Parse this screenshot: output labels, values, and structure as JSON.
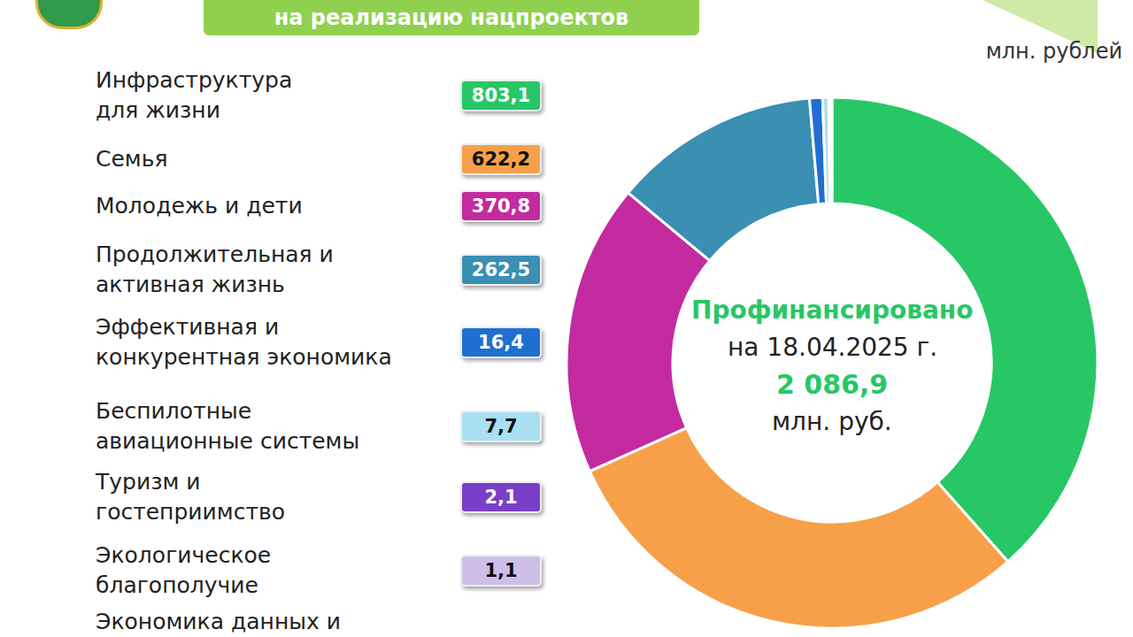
{
  "chart_data": {
    "type": "donut",
    "title": "на реализацию нацпроектов",
    "subtitle": "млн. рублей",
    "categories": [
      "Инфраструктура\nдля жизни",
      "Семья",
      "Молодежь и дети",
      "Продолжительная и\nактивная жизнь",
      "Эффективная и\nконкурентная экономика",
      "Беспилотные\nавиационные системы",
      "Туризм и\nгостеприимство",
      "Экологическое\nблагополучие",
      "Экономика данных и"
    ],
    "values": [
      803.1,
      622.2,
      370.8,
      262.5,
      16.4,
      7.7,
      2.1,
      1.1,
      1.0
    ],
    "value_labels": [
      "803,1",
      "622,2",
      "370,8",
      "262,5",
      "16,4",
      "7,7",
      "2,1",
      "1,1",
      null
    ],
    "colors": [
      "#27c766",
      "#f7a049",
      "#c42aa0",
      "#3a8fb3",
      "#1f6fd1",
      "#a9dff2",
      "#7a3fc8",
      "#cdbfe9",
      "#8fb8d8"
    ],
    "data_labels": true,
    "center_label": "Профинансировано",
    "center_date": "на 18.04.2025 г.",
    "total": 2086.9,
    "total_label": "2 086,9",
    "center_unit": "млн. руб."
  }
}
